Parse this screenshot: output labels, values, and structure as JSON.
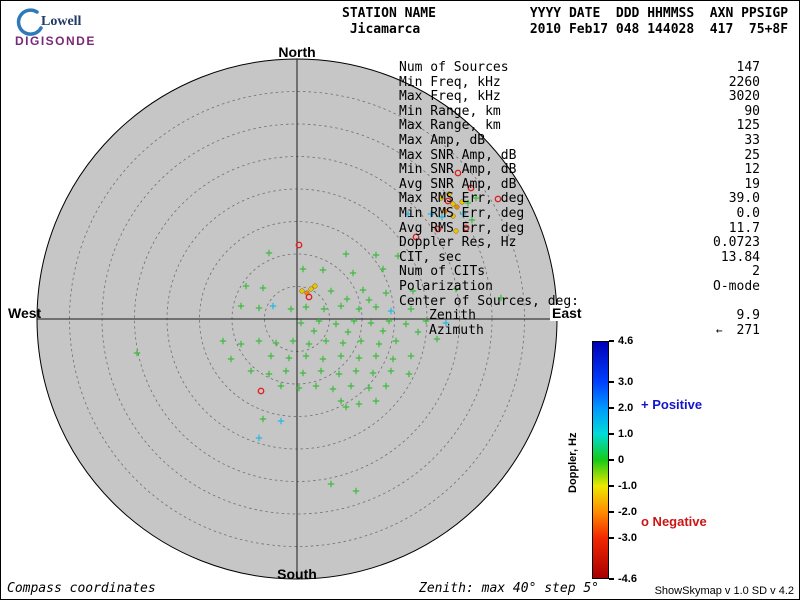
{
  "logo": {
    "line1": "Lowell",
    "line2": "DIGISONDE"
  },
  "header": {
    "columns": [
      {
        "h": "STATION NAME",
        "v": "Jicamarca"
      },
      {
        "h": "YYYY DATE",
        "v": "2010 Feb17"
      },
      {
        "h": "DDD HHMMSS",
        "v": "048 144028"
      },
      {
        "h": "AXN",
        "v": "417"
      },
      {
        "h": "PPS",
        "v": "75"
      },
      {
        "h": "IGP",
        "v": "+8F"
      }
    ]
  },
  "compass": {
    "north": "North",
    "south": "South",
    "east": "East",
    "west": "West"
  },
  "stats": {
    "rows": [
      {
        "label": "Num of Sources",
        "value": "147"
      },
      {
        "label": "Min Freq, kHz",
        "value": "2260"
      },
      {
        "label": "Max Freq, kHz",
        "value": "3020"
      },
      {
        "label": "Min Range, km",
        "value": "90"
      },
      {
        "label": "Max Range, km",
        "value": "125"
      },
      {
        "label": "Max Amp, dB",
        "value": "33"
      },
      {
        "label": "Max SNR Amp, dB",
        "value": "25"
      },
      {
        "label": "Min SNR Amp, dB",
        "value": "12"
      },
      {
        "label": "Avg SNR Amp, dB",
        "value": "19"
      },
      {
        "label": "Max RMS Err, deg",
        "value": "39.0"
      },
      {
        "label": "Min RMS Err, deg",
        "value": "0.0"
      },
      {
        "label": "Avg RMS Err, deg",
        "value": "11.7"
      },
      {
        "label": "Doppler Res, Hz",
        "value": "0.0723"
      },
      {
        "label": "CIT, sec",
        "value": "13.84"
      },
      {
        "label": "Num of CITs",
        "value": "2"
      },
      {
        "label": "Polarization",
        "value": "O-mode"
      },
      {
        "label": "Center of Sources, deg:",
        "value": ""
      },
      {
        "label": "Zenith",
        "value": "9.9",
        "indent": true
      },
      {
        "label": "Azimuth",
        "value": "271",
        "indent": true,
        "icon": "←"
      }
    ]
  },
  "colorbar": {
    "axis_label": "Doppler, Hz",
    "max": 4.6,
    "min": -4.6,
    "tick_values": [
      4.6,
      3.0,
      2.0,
      1.0,
      0,
      -1.0,
      -2.0,
      -3.0,
      -4.6
    ],
    "ticks": [
      "4.6",
      "3.0",
      "2.0",
      "1.0",
      "0",
      "-1.0",
      "-2.0",
      "-3.0",
      "-4.6"
    ],
    "gradient": [
      {
        "p": 0,
        "c": "#0000b6"
      },
      {
        "p": 17,
        "c": "#0040ff"
      },
      {
        "p": 28,
        "c": "#0098ff"
      },
      {
        "p": 39,
        "c": "#00dcd8"
      },
      {
        "p": 50,
        "c": "#16c916"
      },
      {
        "p": 61,
        "c": "#ece800"
      },
      {
        "p": 72,
        "c": "#ff8c00"
      },
      {
        "p": 83,
        "c": "#f22800"
      },
      {
        "p": 100,
        "c": "#a80000"
      }
    ]
  },
  "legend": {
    "positive": "+ Positive",
    "negative": "o Negative",
    "positive_color": "#1414cc",
    "negative_color": "#cc1414"
  },
  "footer": {
    "left": "Compass coordinates",
    "center": "Zenith: max 40°  step 5°",
    "right": "ShowSkymap v 1.0  SD v 4.2"
  },
  "chart_data": {
    "type": "scatter",
    "projection": "polar-skymap-compass",
    "zenith_max_deg": 40,
    "zenith_step_deg": 5,
    "doppler_range_hz": [
      -4.6,
      4.6
    ],
    "num_sources": 147,
    "center_of_sources": {
      "zenith_deg": 9.9,
      "azimuth_deg": 271
    },
    "marker_rules": {
      "positive_doppler": "+",
      "negative_doppler": "o"
    },
    "point_colors": {
      "g": "#3dbb3d",
      "c": "#27b7e0",
      "y": "#e6c800",
      "o": "#f08800",
      "r": "#dd2222",
      "b": "#2233cc"
    },
    "points_units": "pixel offset from zenith center; +x = East, +y = South; disk radius 260px = 40 deg zenith",
    "points": [
      [
        161,
        -146,
        "r"
      ],
      [
        174,
        -131,
        "r"
      ],
      [
        144,
        -121,
        "y"
      ],
      [
        151,
        -118,
        "r"
      ],
      [
        156,
        -115,
        "y"
      ],
      [
        160,
        -112,
        "o"
      ],
      [
        165,
        -117,
        "y"
      ],
      [
        152,
        -125,
        "y"
      ],
      [
        148,
        -108,
        "o"
      ],
      [
        171,
        -116,
        "g"
      ],
      [
        179,
        -121,
        "g"
      ],
      [
        201,
        -120,
        "r"
      ],
      [
        134,
        -105,
        "c"
      ],
      [
        145,
        -102,
        "c"
      ],
      [
        156,
        -103,
        "y"
      ],
      [
        166,
        -105,
        "c"
      ],
      [
        175,
        -99,
        "g"
      ],
      [
        111,
        -105,
        "c"
      ],
      [
        141,
        -90,
        "r"
      ],
      [
        159,
        -88,
        "y"
      ],
      [
        169,
        -91,
        "r"
      ],
      [
        119,
        -82,
        "r"
      ],
      [
        2,
        -74,
        "r"
      ],
      [
        5,
        -28,
        "y"
      ],
      [
        10,
        -26,
        "o"
      ],
      [
        14,
        -30,
        "y"
      ],
      [
        12,
        -22,
        "r"
      ],
      [
        18,
        -33,
        "y"
      ],
      [
        -36,
        72,
        "r"
      ],
      [
        -28,
        -66,
        "g"
      ],
      [
        49,
        -65,
        "g"
      ],
      [
        79,
        -64,
        "g"
      ],
      [
        101,
        -63,
        "g"
      ],
      [
        6,
        -50,
        "g"
      ],
      [
        26,
        -49,
        "g"
      ],
      [
        56,
        -46,
        "g"
      ],
      [
        86,
        -50,
        "g"
      ],
      [
        -51,
        -33,
        "g"
      ],
      [
        -34,
        -31,
        "g"
      ],
      [
        34,
        -28,
        "g"
      ],
      [
        66,
        -29,
        "g"
      ],
      [
        89,
        -26,
        "g"
      ],
      [
        116,
        -28,
        "g"
      ],
      [
        159,
        -30,
        "g"
      ],
      [
        204,
        -21,
        "g"
      ],
      [
        -56,
        -13,
        "g"
      ],
      [
        -38,
        -11,
        "g"
      ],
      [
        -24,
        -13,
        "c"
      ],
      [
        -6,
        -10,
        "g"
      ],
      [
        9,
        -12,
        "g"
      ],
      [
        27,
        -10,
        "g"
      ],
      [
        44,
        -13,
        "g"
      ],
      [
        62,
        -10,
        "g"
      ],
      [
        79,
        -12,
        "g"
      ],
      [
        94,
        -8,
        "c"
      ],
      [
        114,
        -10,
        "g"
      ],
      [
        50,
        -20,
        "g"
      ],
      [
        72,
        -19,
        "g"
      ],
      [
        4,
        4,
        "g"
      ],
      [
        22,
        2,
        "g"
      ],
      [
        39,
        5,
        "g"
      ],
      [
        57,
        2,
        "g"
      ],
      [
        74,
        4,
        "g"
      ],
      [
        92,
        2,
        "g"
      ],
      [
        109,
        5,
        "g"
      ],
      [
        129,
        2,
        "g"
      ],
      [
        149,
        4,
        "c"
      ],
      [
        17,
        12,
        "g"
      ],
      [
        51,
        13,
        "g"
      ],
      [
        86,
        12,
        "g"
      ],
      [
        121,
        13,
        "g"
      ],
      [
        -160,
        34,
        "g"
      ],
      [
        -74,
        22,
        "g"
      ],
      [
        -56,
        25,
        "g"
      ],
      [
        -38,
        22,
        "g"
      ],
      [
        -21,
        24,
        "g"
      ],
      [
        -4,
        22,
        "g"
      ],
      [
        12,
        25,
        "g"
      ],
      [
        29,
        22,
        "g"
      ],
      [
        46,
        24,
        "g"
      ],
      [
        64,
        22,
        "g"
      ],
      [
        82,
        25,
        "g"
      ],
      [
        99,
        22,
        "g"
      ],
      [
        140,
        20,
        "g"
      ],
      [
        -26,
        37,
        "g"
      ],
      [
        -8,
        39,
        "g"
      ],
      [
        9,
        37,
        "g"
      ],
      [
        26,
        40,
        "g"
      ],
      [
        44,
        37,
        "g"
      ],
      [
        62,
        39,
        "g"
      ],
      [
        79,
        37,
        "g"
      ],
      [
        96,
        40,
        "g"
      ],
      [
        114,
        37,
        "g"
      ],
      [
        -66,
        40,
        "g"
      ],
      [
        -46,
        52,
        "g"
      ],
      [
        -28,
        55,
        "g"
      ],
      [
        -11,
        52,
        "g"
      ],
      [
        6,
        54,
        "g"
      ],
      [
        24,
        52,
        "g"
      ],
      [
        42,
        55,
        "g"
      ],
      [
        59,
        52,
        "g"
      ],
      [
        76,
        54,
        "g"
      ],
      [
        94,
        52,
        "g"
      ],
      [
        112,
        55,
        "g"
      ],
      [
        -16,
        67,
        "g"
      ],
      [
        2,
        69,
        "g"
      ],
      [
        19,
        67,
        "g"
      ],
      [
        36,
        70,
        "g"
      ],
      [
        54,
        67,
        "g"
      ],
      [
        72,
        69,
        "g"
      ],
      [
        89,
        67,
        "g"
      ],
      [
        44,
        82,
        "g"
      ],
      [
        62,
        85,
        "g"
      ],
      [
        79,
        82,
        "g"
      ],
      [
        49,
        88,
        "g"
      ],
      [
        -34,
        100,
        "g"
      ],
      [
        -16,
        102,
        "c"
      ],
      [
        -38,
        119,
        "c"
      ],
      [
        34,
        165,
        "g"
      ],
      [
        59,
        172,
        "g"
      ]
    ]
  }
}
